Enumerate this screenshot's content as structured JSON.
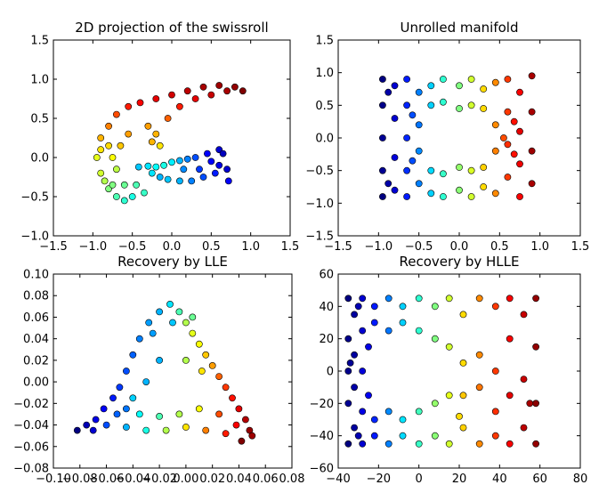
{
  "chart_data": [
    {
      "type": "scatter",
      "title": "2D projection of the swissroll",
      "xlim": [
        -1.5,
        1.5
      ],
      "ylim": [
        -1.0,
        1.5
      ],
      "xticks": [
        -1.5,
        -1.0,
        -0.5,
        0.0,
        0.5,
        1.0,
        1.5
      ],
      "xtick_labels": [
        "−1.5",
        "−1.0",
        "−0.5",
        "0.0",
        "0.5",
        "1.0",
        "1.5"
      ],
      "yticks": [
        -1.0,
        -0.5,
        0.0,
        0.5,
        1.0,
        1.5
      ],
      "ytick_labels": [
        "−1.0",
        "−0.5",
        "0.0",
        "0.5",
        "1.0",
        "1.5"
      ],
      "colormap": "jet",
      "points": [
        [
          -0.42,
          -0.12,
          0.32
        ],
        [
          -0.3,
          -0.11,
          0.35
        ],
        [
          -0.2,
          -0.12,
          0.38
        ],
        [
          -0.1,
          -0.1,
          0.4
        ],
        [
          0.0,
          -0.06,
          0.36
        ],
        [
          0.1,
          -0.04,
          0.3
        ],
        [
          0.2,
          -0.02,
          0.25
        ],
        [
          0.3,
          0.0,
          0.2
        ],
        [
          0.45,
          0.05,
          0.12
        ],
        [
          0.6,
          0.1,
          0.08
        ],
        [
          0.65,
          0.05,
          0.06
        ],
        [
          0.6,
          -0.1,
          0.1
        ],
        [
          0.55,
          -0.2,
          0.15
        ],
        [
          0.4,
          -0.25,
          0.2
        ],
        [
          0.25,
          -0.3,
          0.25
        ],
        [
          0.1,
          -0.3,
          0.3
        ],
        [
          -0.05,
          -0.28,
          0.32
        ],
        [
          -0.15,
          -0.25,
          0.3
        ],
        [
          0.35,
          -0.15,
          0.18
        ],
        [
          0.5,
          -0.05,
          0.12
        ],
        [
          0.15,
          -0.15,
          0.26
        ],
        [
          -0.25,
          -0.2,
          0.35
        ],
        [
          0.7,
          -0.15,
          0.08
        ],
        [
          0.72,
          -0.3,
          0.12
        ],
        [
          -0.5,
          -0.5,
          0.4
        ],
        [
          -0.6,
          -0.55,
          0.42
        ],
        [
          -0.7,
          -0.5,
          0.45
        ],
        [
          -0.8,
          -0.4,
          0.5
        ],
        [
          -0.85,
          -0.3,
          0.55
        ],
        [
          -0.9,
          -0.2,
          0.58
        ],
        [
          -0.95,
          0.0,
          0.6
        ],
        [
          -0.9,
          0.1,
          0.65
        ],
        [
          -0.9,
          0.25,
          0.7
        ],
        [
          -0.8,
          0.4,
          0.75
        ],
        [
          -0.7,
          0.55,
          0.8
        ],
        [
          -0.55,
          0.65,
          0.85
        ],
        [
          -0.4,
          0.7,
          0.88
        ],
        [
          -0.2,
          0.75,
          0.9
        ],
        [
          0.0,
          0.8,
          0.92
        ],
        [
          0.2,
          0.85,
          0.94
        ],
        [
          0.4,
          0.9,
          0.96
        ],
        [
          0.6,
          0.92,
          0.97
        ],
        [
          0.8,
          0.9,
          0.98
        ],
        [
          0.9,
          0.85,
          1.0
        ],
        [
          -0.75,
          -0.35,
          0.5
        ],
        [
          -0.6,
          -0.35,
          0.48
        ],
        [
          -0.45,
          -0.35,
          0.45
        ],
        [
          -0.35,
          -0.45,
          0.43
        ],
        [
          -0.3,
          0.4,
          0.72
        ],
        [
          -0.2,
          0.3,
          0.7
        ],
        [
          -0.15,
          0.15,
          0.65
        ],
        [
          -0.25,
          0.2,
          0.7
        ],
        [
          -0.05,
          0.5,
          0.78
        ],
        [
          -0.55,
          0.3,
          0.72
        ],
        [
          -0.65,
          0.15,
          0.68
        ],
        [
          -0.75,
          0.0,
          0.62
        ],
        [
          -0.8,
          0.15,
          0.66
        ],
        [
          -0.7,
          -0.15,
          0.56
        ],
        [
          0.1,
          0.65,
          0.85
        ],
        [
          0.3,
          0.75,
          0.9
        ],
        [
          0.5,
          0.8,
          0.93
        ],
        [
          0.7,
          0.85,
          0.96
        ]
      ]
    },
    {
      "type": "scatter",
      "title": "Unrolled manifold",
      "xlim": [
        -1.5,
        1.5
      ],
      "ylim": [
        -1.5,
        1.5
      ],
      "xticks": [
        -1.5,
        -1.0,
        -0.5,
        0.0,
        0.5,
        1.0,
        1.5
      ],
      "xtick_labels": [
        "−1.5",
        "−1.0",
        "−0.5",
        "0.0",
        "0.5",
        "1.0",
        "1.5"
      ],
      "yticks": [
        -1.5,
        -1.0,
        -0.5,
        0.0,
        0.5,
        1.0,
        1.5
      ],
      "ytick_labels": [
        "−1.5",
        "−1.0",
        "−0.5",
        "0.0",
        "0.5",
        "1.0",
        "1.5"
      ],
      "colormap": "jet",
      "points": [
        [
          -0.95,
          0.9,
          0.0
        ],
        [
          -0.95,
          0.5,
          0.01
        ],
        [
          -0.95,
          0.0,
          0.02
        ],
        [
          -0.95,
          -0.5,
          0.02
        ],
        [
          -0.95,
          -0.9,
          0.0
        ],
        [
          -0.8,
          0.8,
          0.08
        ],
        [
          -0.8,
          0.3,
          0.08
        ],
        [
          -0.8,
          -0.3,
          0.09
        ],
        [
          -0.8,
          -0.8,
          0.08
        ],
        [
          -0.65,
          0.9,
          0.15
        ],
        [
          -0.65,
          0.5,
          0.16
        ],
        [
          -0.65,
          0.0,
          0.16
        ],
        [
          -0.65,
          -0.5,
          0.17
        ],
        [
          -0.65,
          -0.9,
          0.15
        ],
        [
          -0.5,
          0.7,
          0.25
        ],
        [
          -0.5,
          0.2,
          0.24
        ],
        [
          -0.5,
          -0.2,
          0.26
        ],
        [
          -0.5,
          -0.7,
          0.25
        ],
        [
          -0.35,
          0.8,
          0.33
        ],
        [
          -0.35,
          0.5,
          0.33
        ],
        [
          -0.35,
          -0.5,
          0.34
        ],
        [
          -0.35,
          -0.85,
          0.33
        ],
        [
          -0.2,
          0.9,
          0.42
        ],
        [
          -0.2,
          0.55,
          0.42
        ],
        [
          -0.2,
          -0.55,
          0.43
        ],
        [
          -0.2,
          -0.9,
          0.42
        ],
        [
          0.0,
          0.8,
          0.5
        ],
        [
          0.0,
          0.45,
          0.5
        ],
        [
          0.0,
          -0.45,
          0.52
        ],
        [
          0.0,
          -0.8,
          0.51
        ],
        [
          0.15,
          0.9,
          0.58
        ],
        [
          0.15,
          0.5,
          0.58
        ],
        [
          0.15,
          -0.5,
          0.59
        ],
        [
          0.15,
          -0.9,
          0.58
        ],
        [
          0.3,
          0.75,
          0.66
        ],
        [
          0.3,
          0.45,
          0.66
        ],
        [
          0.3,
          -0.45,
          0.67
        ],
        [
          0.3,
          -0.75,
          0.66
        ],
        [
          0.45,
          0.85,
          0.74
        ],
        [
          0.45,
          0.2,
          0.74
        ],
        [
          0.45,
          -0.2,
          0.75
        ],
        [
          0.45,
          -0.85,
          0.74
        ],
        [
          0.6,
          0.9,
          0.82
        ],
        [
          0.6,
          0.4,
          0.82
        ],
        [
          0.6,
          -0.1,
          0.83
        ],
        [
          0.6,
          -0.6,
          0.82
        ],
        [
          0.75,
          0.7,
          0.88
        ],
        [
          0.75,
          0.1,
          0.9
        ],
        [
          0.75,
          -0.4,
          0.89
        ],
        [
          0.75,
          -0.9,
          0.88
        ],
        [
          0.9,
          0.95,
          0.96
        ],
        [
          0.9,
          0.4,
          0.96
        ],
        [
          0.9,
          -0.2,
          0.97
        ],
        [
          0.9,
          -0.7,
          0.96
        ],
        [
          -0.88,
          0.7,
          0.04
        ],
        [
          -0.88,
          -0.7,
          0.04
        ],
        [
          -0.58,
          -0.35,
          0.2
        ],
        [
          -0.58,
          0.35,
          0.2
        ],
        [
          0.55,
          0.0,
          0.8
        ],
        [
          0.68,
          0.25,
          0.86
        ],
        [
          0.68,
          -0.25,
          0.86
        ]
      ]
    },
    {
      "type": "scatter",
      "title": "Recovery by LLE",
      "xlim": [
        -0.1,
        0.08
      ],
      "ylim": [
        -0.08,
        0.1
      ],
      "xticks": [
        -0.1,
        -0.08,
        -0.06,
        -0.04,
        -0.02,
        0.0,
        0.02,
        0.04,
        0.06,
        0.08
      ],
      "xtick_labels": [
        "−0.10",
        "−0.08",
        "−0.06",
        "−0.04",
        "−0.02",
        "0.00",
        "0.02",
        "0.04",
        "0.06",
        "0.08"
      ],
      "yticks": [
        -0.08,
        -0.06,
        -0.04,
        -0.02,
        0.0,
        0.02,
        0.04,
        0.06,
        0.08,
        0.1
      ],
      "ytick_labels": [
        "−0.08",
        "−0.06",
        "−0.04",
        "−0.02",
        "0.00",
        "0.02",
        "0.04",
        "0.06",
        "0.08",
        "0.10"
      ],
      "colormap": "jet",
      "points": [
        [
          -0.082,
          -0.045,
          0.0
        ],
        [
          -0.075,
          -0.04,
          0.05
        ],
        [
          -0.068,
          -0.035,
          0.1
        ],
        [
          -0.062,
          -0.025,
          0.12
        ],
        [
          -0.055,
          -0.015,
          0.15
        ],
        [
          -0.05,
          -0.005,
          0.18
        ],
        [
          -0.045,
          0.01,
          0.2
        ],
        [
          -0.04,
          0.025,
          0.22
        ],
        [
          -0.035,
          0.04,
          0.25
        ],
        [
          -0.028,
          0.055,
          0.28
        ],
        [
          -0.02,
          0.065,
          0.3
        ],
        [
          -0.012,
          0.072,
          0.35
        ],
        [
          -0.005,
          0.065,
          0.45
        ],
        [
          0.0,
          0.055,
          0.55
        ],
        [
          0.005,
          0.045,
          0.6
        ],
        [
          0.01,
          0.035,
          0.62
        ],
        [
          0.015,
          0.025,
          0.68
        ],
        [
          0.02,
          0.015,
          0.72
        ],
        [
          0.025,
          0.005,
          0.78
        ],
        [
          0.03,
          -0.005,
          0.82
        ],
        [
          0.035,
          -0.015,
          0.86
        ],
        [
          0.04,
          -0.025,
          0.9
        ],
        [
          0.045,
          -0.035,
          0.95
        ],
        [
          0.048,
          -0.045,
          0.98
        ],
        [
          0.042,
          -0.055,
          1.0
        ],
        [
          0.03,
          -0.048,
          0.85
        ],
        [
          0.015,
          -0.045,
          0.75
        ],
        [
          0.0,
          -0.042,
          0.65
        ],
        [
          -0.015,
          -0.045,
          0.55
        ],
        [
          -0.03,
          -0.045,
          0.4
        ],
        [
          -0.045,
          -0.042,
          0.3
        ],
        [
          -0.06,
          -0.04,
          0.2
        ],
        [
          -0.035,
          -0.03,
          0.38
        ],
        [
          -0.02,
          -0.032,
          0.45
        ],
        [
          -0.005,
          -0.03,
          0.55
        ],
        [
          0.01,
          -0.025,
          0.62
        ],
        [
          -0.04,
          -0.015,
          0.33
        ],
        [
          -0.03,
          0.0,
          0.3
        ],
        [
          -0.02,
          0.02,
          0.3
        ],
        [
          0.0,
          0.02,
          0.55
        ],
        [
          0.012,
          0.01,
          0.65
        ],
        [
          -0.025,
          0.045,
          0.28
        ],
        [
          -0.01,
          0.055,
          0.32
        ],
        [
          0.005,
          0.06,
          0.48
        ],
        [
          -0.052,
          -0.03,
          0.22
        ],
        [
          0.025,
          -0.03,
          0.8
        ],
        [
          0.038,
          -0.04,
          0.88
        ],
        [
          0.05,
          -0.05,
          0.97
        ],
        [
          -0.07,
          -0.045,
          0.08
        ],
        [
          -0.045,
          -0.025,
          0.24
        ]
      ]
    },
    {
      "type": "scatter",
      "title": "Recovery by HLLE",
      "xlim": [
        -40,
        80
      ],
      "ylim": [
        -60,
        60
      ],
      "xticks": [
        -40,
        -20,
        0,
        20,
        40,
        60,
        80
      ],
      "xtick_labels": [
        "−40",
        "−20",
        "0",
        "20",
        "40",
        "60",
        "80"
      ],
      "yticks": [
        -60,
        -40,
        -20,
        0,
        20,
        40,
        60
      ],
      "ytick_labels": [
        "−60",
        "−40",
        "−20",
        "0",
        "20",
        "40",
        "60"
      ],
      "colormap": "jet",
      "points": [
        [
          -35,
          45,
          0.0
        ],
        [
          -35,
          20,
          0.01
        ],
        [
          -35,
          0,
          0.01
        ],
        [
          -35,
          -20,
          0.02
        ],
        [
          -35,
          -45,
          0.0
        ],
        [
          -32,
          35,
          0.03
        ],
        [
          -32,
          10,
          0.03
        ],
        [
          -32,
          -10,
          0.04
        ],
        [
          -32,
          -35,
          0.03
        ],
        [
          -28,
          45,
          0.08
        ],
        [
          -28,
          25,
          0.08
        ],
        [
          -28,
          0,
          0.09
        ],
        [
          -28,
          -25,
          0.1
        ],
        [
          -28,
          -45,
          0.08
        ],
        [
          -22,
          40,
          0.15
        ],
        [
          -22,
          30,
          0.15
        ],
        [
          -22,
          -30,
          0.16
        ],
        [
          -22,
          -40,
          0.15
        ],
        [
          -15,
          45,
          0.25
        ],
        [
          -15,
          25,
          0.24
        ],
        [
          -15,
          -25,
          0.26
        ],
        [
          -15,
          -45,
          0.25
        ],
        [
          -8,
          40,
          0.33
        ],
        [
          -8,
          30,
          0.33
        ],
        [
          -8,
          -30,
          0.35
        ],
        [
          -8,
          -40,
          0.34
        ],
        [
          0,
          45,
          0.42
        ],
        [
          0,
          25,
          0.42
        ],
        [
          0,
          -25,
          0.44
        ],
        [
          0,
          -45,
          0.43
        ],
        [
          8,
          40,
          0.5
        ],
        [
          8,
          20,
          0.5
        ],
        [
          8,
          -20,
          0.52
        ],
        [
          8,
          -40,
          0.51
        ],
        [
          15,
          45,
          0.58
        ],
        [
          15,
          15,
          0.58
        ],
        [
          15,
          -15,
          0.6
        ],
        [
          15,
          -45,
          0.58
        ],
        [
          22,
          35,
          0.66
        ],
        [
          22,
          5,
          0.66
        ],
        [
          22,
          -15,
          0.68
        ],
        [
          22,
          -35,
          0.67
        ],
        [
          30,
          45,
          0.74
        ],
        [
          30,
          10,
          0.74
        ],
        [
          30,
          -10,
          0.76
        ],
        [
          30,
          -45,
          0.74
        ],
        [
          38,
          40,
          0.82
        ],
        [
          38,
          0,
          0.82
        ],
        [
          38,
          -25,
          0.83
        ],
        [
          38,
          -40,
          0.82
        ],
        [
          45,
          45,
          0.88
        ],
        [
          45,
          20,
          0.88
        ],
        [
          45,
          -15,
          0.9
        ],
        [
          45,
          -45,
          0.88
        ],
        [
          52,
          35,
          0.93
        ],
        [
          52,
          -5,
          0.93
        ],
        [
          52,
          -35,
          0.94
        ],
        [
          58,
          45,
          0.98
        ],
        [
          58,
          15,
          0.98
        ],
        [
          58,
          -20,
          0.99
        ],
        [
          58,
          -45,
          0.98
        ],
        [
          55,
          -20,
          0.96
        ],
        [
          20,
          -28,
          0.66
        ],
        [
          -34,
          5,
          0.02
        ],
        [
          -30,
          40,
          0.05
        ],
        [
          -30,
          -40,
          0.05
        ],
        [
          -25,
          15,
          0.1
        ],
        [
          -25,
          -15,
          0.11
        ]
      ]
    }
  ]
}
